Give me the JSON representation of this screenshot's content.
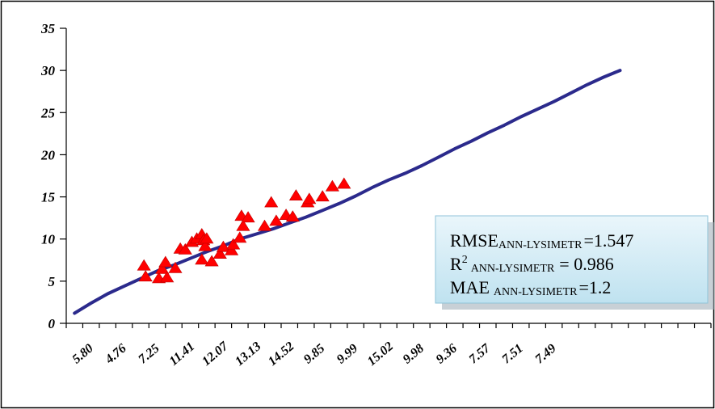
{
  "chart_data": {
    "type": "scatter",
    "title": "",
    "xlabel": "",
    "ylabel": "",
    "ylim": [
      0,
      35
    ],
    "yticks": [
      0,
      5,
      10,
      15,
      20,
      25,
      30,
      35
    ],
    "xtick_labels": [
      "5.80",
      "4.76",
      "7.25",
      "11.41",
      "12.07",
      "13.13",
      "14.52",
      "9.85",
      "9.99",
      "15.02",
      "9.98",
      "9.36",
      "7.57",
      "7.51",
      "7.49"
    ],
    "n_categories": 39,
    "grid": false,
    "series": [
      {
        "kind": "line",
        "color": "#2B2A8C",
        "points": [
          [
            1,
            1.2
          ],
          [
            2,
            2.4
          ],
          [
            3,
            3.5
          ],
          [
            4,
            4.4
          ],
          [
            5,
            5.3
          ],
          [
            6,
            6.2
          ],
          [
            7,
            6.9
          ],
          [
            8,
            7.7
          ],
          [
            9,
            8.5
          ],
          [
            10,
            9.2
          ],
          [
            11,
            10.0
          ],
          [
            12,
            10.6
          ],
          [
            13,
            11.2
          ],
          [
            14,
            11.9
          ],
          [
            15,
            12.6
          ],
          [
            16,
            13.4
          ],
          [
            17,
            14.2
          ],
          [
            18,
            15.1
          ],
          [
            19,
            16.1
          ],
          [
            20,
            17.0
          ],
          [
            21,
            17.8
          ],
          [
            22,
            18.7
          ],
          [
            23,
            19.7
          ],
          [
            24,
            20.7
          ],
          [
            25,
            21.6
          ],
          [
            26,
            22.6
          ],
          [
            27,
            23.5
          ],
          [
            28,
            24.5
          ],
          [
            29,
            25.4
          ],
          [
            30,
            26.3
          ],
          [
            31,
            27.3
          ],
          [
            32,
            28.3
          ],
          [
            33,
            29.2
          ],
          [
            34,
            30.0
          ]
        ]
      },
      {
        "kind": "markers",
        "marker": "triangle",
        "color": "#FF0000",
        "points": [
          [
            5.2,
            6.8
          ],
          [
            5.3,
            5.5
          ],
          [
            6.1,
            5.3
          ],
          [
            6.3,
            6.4
          ],
          [
            6.5,
            7.2
          ],
          [
            6.6,
            5.4
          ],
          [
            7.1,
            6.5
          ],
          [
            7.4,
            8.8
          ],
          [
            7.7,
            8.7
          ],
          [
            8.1,
            9.6
          ],
          [
            8.4,
            10.0
          ],
          [
            8.7,
            10.5
          ],
          [
            8.7,
            7.5
          ],
          [
            8.8,
            9.8
          ],
          [
            8.9,
            9.1
          ],
          [
            9.0,
            10.0
          ],
          [
            9.3,
            7.3
          ],
          [
            9.8,
            8.2
          ],
          [
            10.0,
            9.0
          ],
          [
            10.5,
            8.6
          ],
          [
            10.6,
            9.3
          ],
          [
            11.0,
            10.1
          ],
          [
            11.1,
            12.7
          ],
          [
            11.2,
            11.5
          ],
          [
            11.5,
            12.5
          ],
          [
            12.5,
            11.5
          ],
          [
            12.9,
            14.3
          ],
          [
            13.2,
            12.1
          ],
          [
            13.8,
            12.8
          ],
          [
            14.2,
            12.6
          ],
          [
            14.4,
            15.1
          ],
          [
            15.1,
            14.3
          ],
          [
            15.2,
            14.7
          ],
          [
            16.0,
            15.0
          ],
          [
            16.6,
            16.2
          ],
          [
            17.3,
            16.5
          ]
        ]
      }
    ],
    "annotations": {
      "rmse": {
        "label": "RMSE",
        "subscript": "ANN-LYSIMETR",
        "value": "=1.547"
      },
      "r2": {
        "label": "R",
        "superscript": "2",
        "subscript": "ANN-LYSIMETR",
        "value": "= 0.986"
      },
      "mae": {
        "label": "MAE",
        "subscript": "ANN-LYSIMETR",
        "value": "=1.2"
      }
    }
  }
}
